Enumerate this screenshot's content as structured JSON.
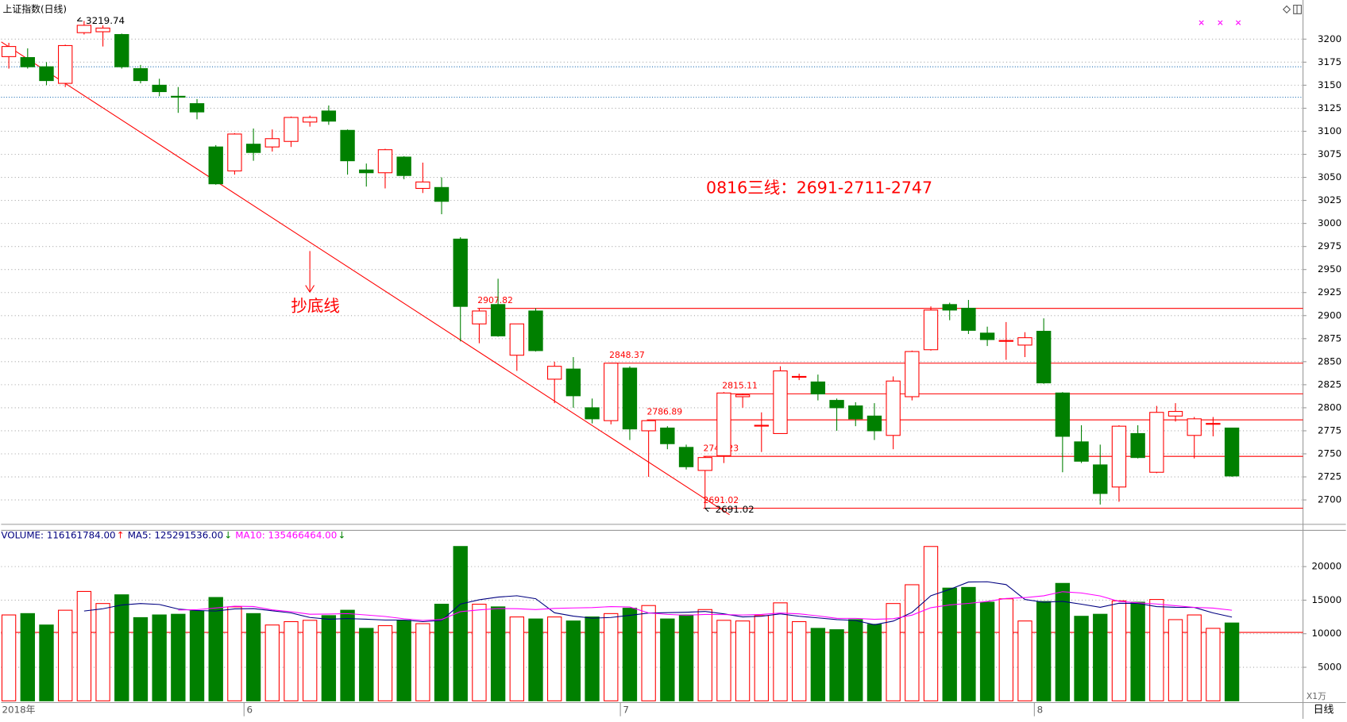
{
  "chart_data": {
    "type": "candlestick",
    "title": "上证指数(日线)",
    "annotation": "0816三线：2691-2711-2747",
    "trend_label": "抄底线",
    "period_label": "日线",
    "volume_unit_label": "X1万",
    "x_labels": [
      {
        "index": 0,
        "label": "2018年"
      },
      {
        "index": 13,
        "label": "6"
      },
      {
        "index": 33,
        "label": "7"
      },
      {
        "index": 55,
        "label": "8"
      }
    ],
    "open": [
      3181,
      3180,
      3170,
      3152,
      3207,
      3208,
      3205,
      3168,
      3150,
      3138,
      3130,
      3083,
      3057,
      3086,
      3083,
      3089,
      3110,
      3122,
      3101,
      3058,
      3055,
      3072,
      3038,
      3039,
      2983,
      2891,
      2912,
      2857,
      2905,
      2831,
      2842,
      2800,
      2786,
      2843,
      2775,
      2778,
      2757,
      2732,
      2748,
      2812,
      2781,
      2772,
      2834,
      2828,
      2808,
      2802,
      2791,
      2770,
      2812,
      2863,
      2912,
      2908,
      2881,
      2873,
      2868,
      2883,
      2816,
      2763,
      2738,
      2714,
      2772,
      2730,
      2791,
      2770,
      2783,
      2778
    ],
    "high": [
      3196,
      3190,
      3175,
      3194,
      3219.74,
      3215,
      3206,
      3172,
      3157,
      3148,
      3135,
      3085,
      3098,
      3103,
      3102,
      3116,
      3117,
      3128,
      3102,
      3065,
      3081,
      3073,
      3066,
      3050,
      2985,
      2907.82,
      2940,
      2891,
      2908,
      2850,
      2855,
      2810,
      2848.37,
      2845,
      2786.89,
      2780,
      2760,
      2747.23,
      2817,
      2815.11,
      2795,
      2845,
      2837,
      2836,
      2810,
      2806,
      2805,
      2834,
      2862,
      2910,
      2914,
      2917,
      2888,
      2893,
      2882,
      2897,
      2817,
      2781,
      2760,
      2781,
      2781,
      2802,
      2805,
      2790,
      2790,
      2778
    ],
    "low": [
      3168,
      3168,
      3150,
      3148,
      3205,
      3192,
      3168,
      3152,
      3138,
      3120,
      3113,
      3042,
      3053,
      3068,
      3078,
      3083,
      3105,
      3107,
      3053,
      3040,
      3038,
      3048,
      3033,
      3010,
      2872,
      2870,
      2877,
      2840,
      2861,
      2805,
      2800,
      2783,
      2782,
      2765,
      2725,
      2755,
      2733,
      2691.02,
      2740,
      2800,
      2752,
      2772,
      2830,
      2808,
      2775,
      2780,
      2765,
      2755,
      2808,
      2862,
      2895,
      2880,
      2867,
      2852,
      2855,
      2826,
      2730,
      2740,
      2695,
      2698,
      2745,
      2729,
      2785,
      2745,
      2769,
      2725
    ],
    "close": [
      3192,
      3170,
      3155,
      3193,
      3215,
      3212,
      3170,
      3155,
      3143,
      3137,
      3121,
      3043,
      3097,
      3077,
      3092,
      3115,
      3115,
      3111,
      3068,
      3055,
      3080,
      3052,
      3045,
      3024,
      2910,
      2905,
      2878,
      2891,
      2862,
      2845,
      2813,
      2788,
      2848.37,
      2777,
      2786,
      2761,
      2736,
      2746,
      2816,
      2814,
      2781,
      2840,
      2834,
      2815,
      2800,
      2788,
      2775,
      2829,
      2861,
      2906,
      2906,
      2884,
      2874,
      2873,
      2876,
      2827,
      2769,
      2742,
      2707,
      2780,
      2746,
      2795,
      2796,
      2788,
      2783,
      2726
    ],
    "volume": [
      12800,
      13000,
      11300,
      13500,
      16300,
      14500,
      15800,
      12400,
      12800,
      12900,
      13400,
      15400,
      14000,
      13000,
      11300,
      11800,
      12000,
      12700,
      13500,
      10800,
      11200,
      12000,
      11500,
      14400,
      23000,
      14400,
      14000,
      12500,
      12200,
      12500,
      11900,
      12500,
      13000,
      13800,
      14200,
      12200,
      12800,
      13600,
      12000,
      11900,
      12700,
      14600,
      11800,
      10800,
      10600,
      12100,
      11400,
      14500,
      17300,
      23000,
      16800,
      16900,
      14700,
      15200,
      11900,
      14800,
      17500,
      12600,
      12900,
      14900,
      14700,
      15100,
      12100,
      12800,
      10800,
      11600
    ],
    "up_color": "#ff0000",
    "down_color": "#008000",
    "ylim": [
      2680,
      3222
    ],
    "yticks": [
      2700,
      2725,
      2750,
      2775,
      2800,
      2825,
      2850,
      2875,
      2900,
      2925,
      2950,
      2975,
      3000,
      3025,
      3050,
      3075,
      3100,
      3125,
      3150,
      3175,
      3200
    ],
    "vlim": [
      0,
      24000
    ],
    "vticks": [
      5000,
      10000,
      15000,
      20000
    ],
    "grid": true,
    "support_lines": [
      {
        "value": 2907.82,
        "from": 25
      },
      {
        "value": 2848.37,
        "from": 32
      },
      {
        "value": 2815.11,
        "from": 38
      },
      {
        "value": 2786.89,
        "from": 34
      },
      {
        "value": 2747.23,
        "from": 37
      },
      {
        "value": 2691.02,
        "from": 37
      }
    ],
    "ref_lines": [
      3170,
      3137
    ],
    "ref_color": "#1f6fb5",
    "volume_ref_line": 10200,
    "trendline": {
      "from": [
        -0.4,
        3197
      ],
      "to": [
        38.3,
        2684
      ]
    },
    "volume_legend": [
      {
        "label": "VOLUME: 116161784.00",
        "color": "#000080",
        "arrow": "↑",
        "arrow_color": "#ff0000"
      },
      {
        "label": "MA5: 125291536.00",
        "color": "#000080",
        "arrow": "↓",
        "arrow_color": "#008000"
      },
      {
        "label": "MA10: 135466464.00",
        "color": "#ff00ff",
        "arrow": "↓",
        "arrow_color": "#008000"
      }
    ]
  }
}
